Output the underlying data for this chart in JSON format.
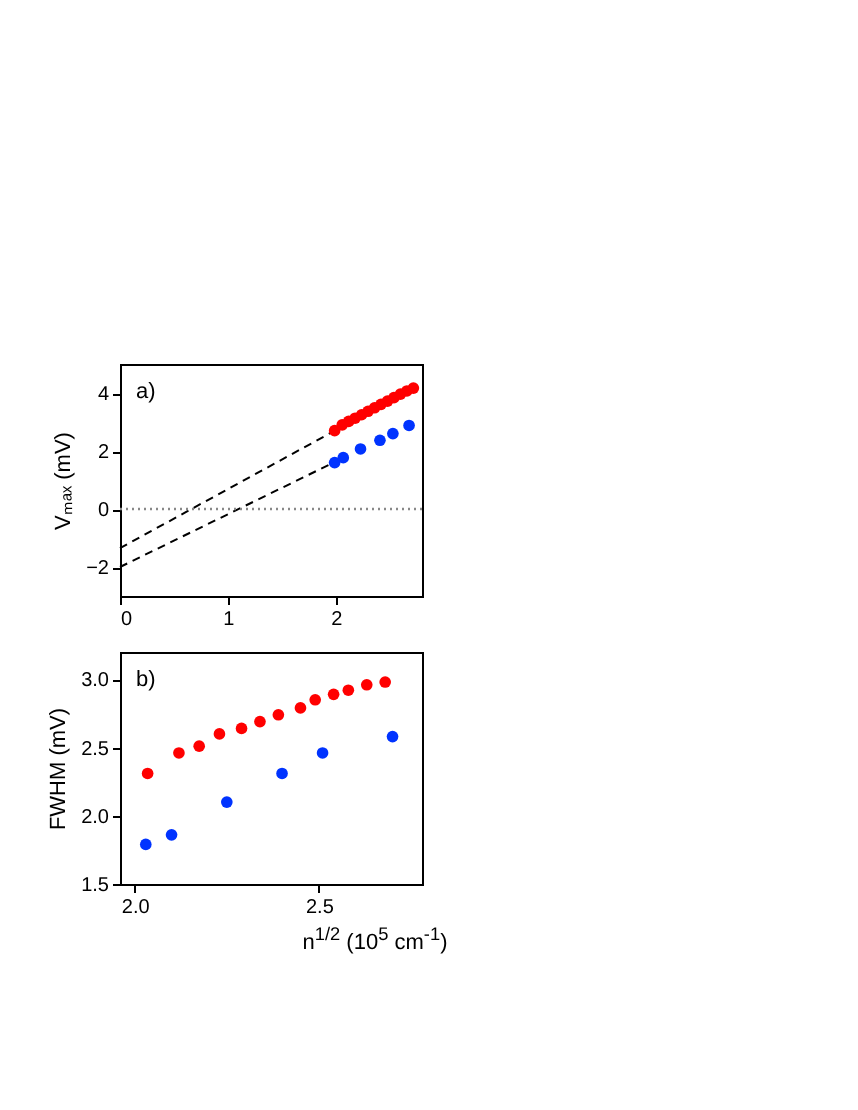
{
  "chart_data": [
    {
      "type": "scatter",
      "ylabel": "Vₘₐₓ  (mV)",
      "annotations": [
        "a)"
      ],
      "xlim": [
        0,
        2.8
      ],
      "ylim": [
        -3,
        5
      ],
      "xticks": [
        0,
        1,
        2
      ],
      "yticks": [
        -2,
        0,
        2,
        4
      ],
      "grid": false,
      "ref_lines": [
        {
          "axis": "y",
          "value": 0,
          "color": "#888888",
          "line_style": "dotted"
        }
      ],
      "series": [
        {
          "type": "line",
          "color": "#000000",
          "line_style": "dashed",
          "x": [
            0,
            1.99
          ],
          "values": [
            -1.35,
            2.7
          ]
        },
        {
          "type": "line",
          "color": "#000000",
          "line_style": "dashed",
          "x": [
            0,
            1.98
          ],
          "values": [
            -2.0,
            1.6
          ]
        },
        {
          "type": "scatter",
          "marker": "circle",
          "color": "#ff0000",
          "x": [
            1.99,
            2.06,
            2.12,
            2.18,
            2.24,
            2.3,
            2.36,
            2.42,
            2.48,
            2.54,
            2.6,
            2.66,
            2.72
          ],
          "values": [
            2.7,
            2.9,
            3.02,
            3.13,
            3.25,
            3.37,
            3.49,
            3.61,
            3.72,
            3.84,
            3.96,
            4.07,
            4.17
          ]
        },
        {
          "type": "scatter",
          "marker": "circle",
          "color": "#0033ff",
          "x": [
            1.99,
            2.07,
            2.23,
            2.41,
            2.53,
            2.68
          ],
          "values": [
            1.6,
            1.77,
            2.07,
            2.37,
            2.6,
            2.88
          ]
        }
      ]
    },
    {
      "type": "scatter",
      "xlabel": "n$^{1/2}$  (10$^{5}$ cm$^{-1}$)",
      "ylabel": "FWHM  (mV)",
      "annotations": [
        "b)"
      ],
      "xlim": [
        1.96,
        2.78
      ],
      "ylim": [
        1.5,
        3.2
      ],
      "xticks": [
        {
          "value": 2,
          "label": "2.0"
        },
        2.5
      ],
      "yticks": [
        1.5,
        {
          "value": 2,
          "label": "2.0"
        },
        2.5,
        {
          "value": 3,
          "label": "3.0"
        }
      ],
      "grid": false,
      "marker": "circle",
      "series": [
        {
          "type": "scatter",
          "color": "#ff0000",
          "x": [
            2.035,
            2.12,
            2.175,
            2.23,
            2.29,
            2.34,
            2.39,
            2.45,
            2.49,
            2.54,
            2.58,
            2.63,
            2.68
          ],
          "values": [
            2.31,
            2.46,
            2.51,
            2.6,
            2.64,
            2.69,
            2.74,
            2.79,
            2.85,
            2.89,
            2.92,
            2.96,
            2.98
          ]
        },
        {
          "type": "scatter",
          "color": "#0033ff",
          "x": [
            2.03,
            2.1,
            2.25,
            2.4,
            2.51,
            2.7
          ],
          "values": [
            1.79,
            1.86,
            2.1,
            2.31,
            2.46,
            2.58
          ]
        }
      ]
    }
  ]
}
